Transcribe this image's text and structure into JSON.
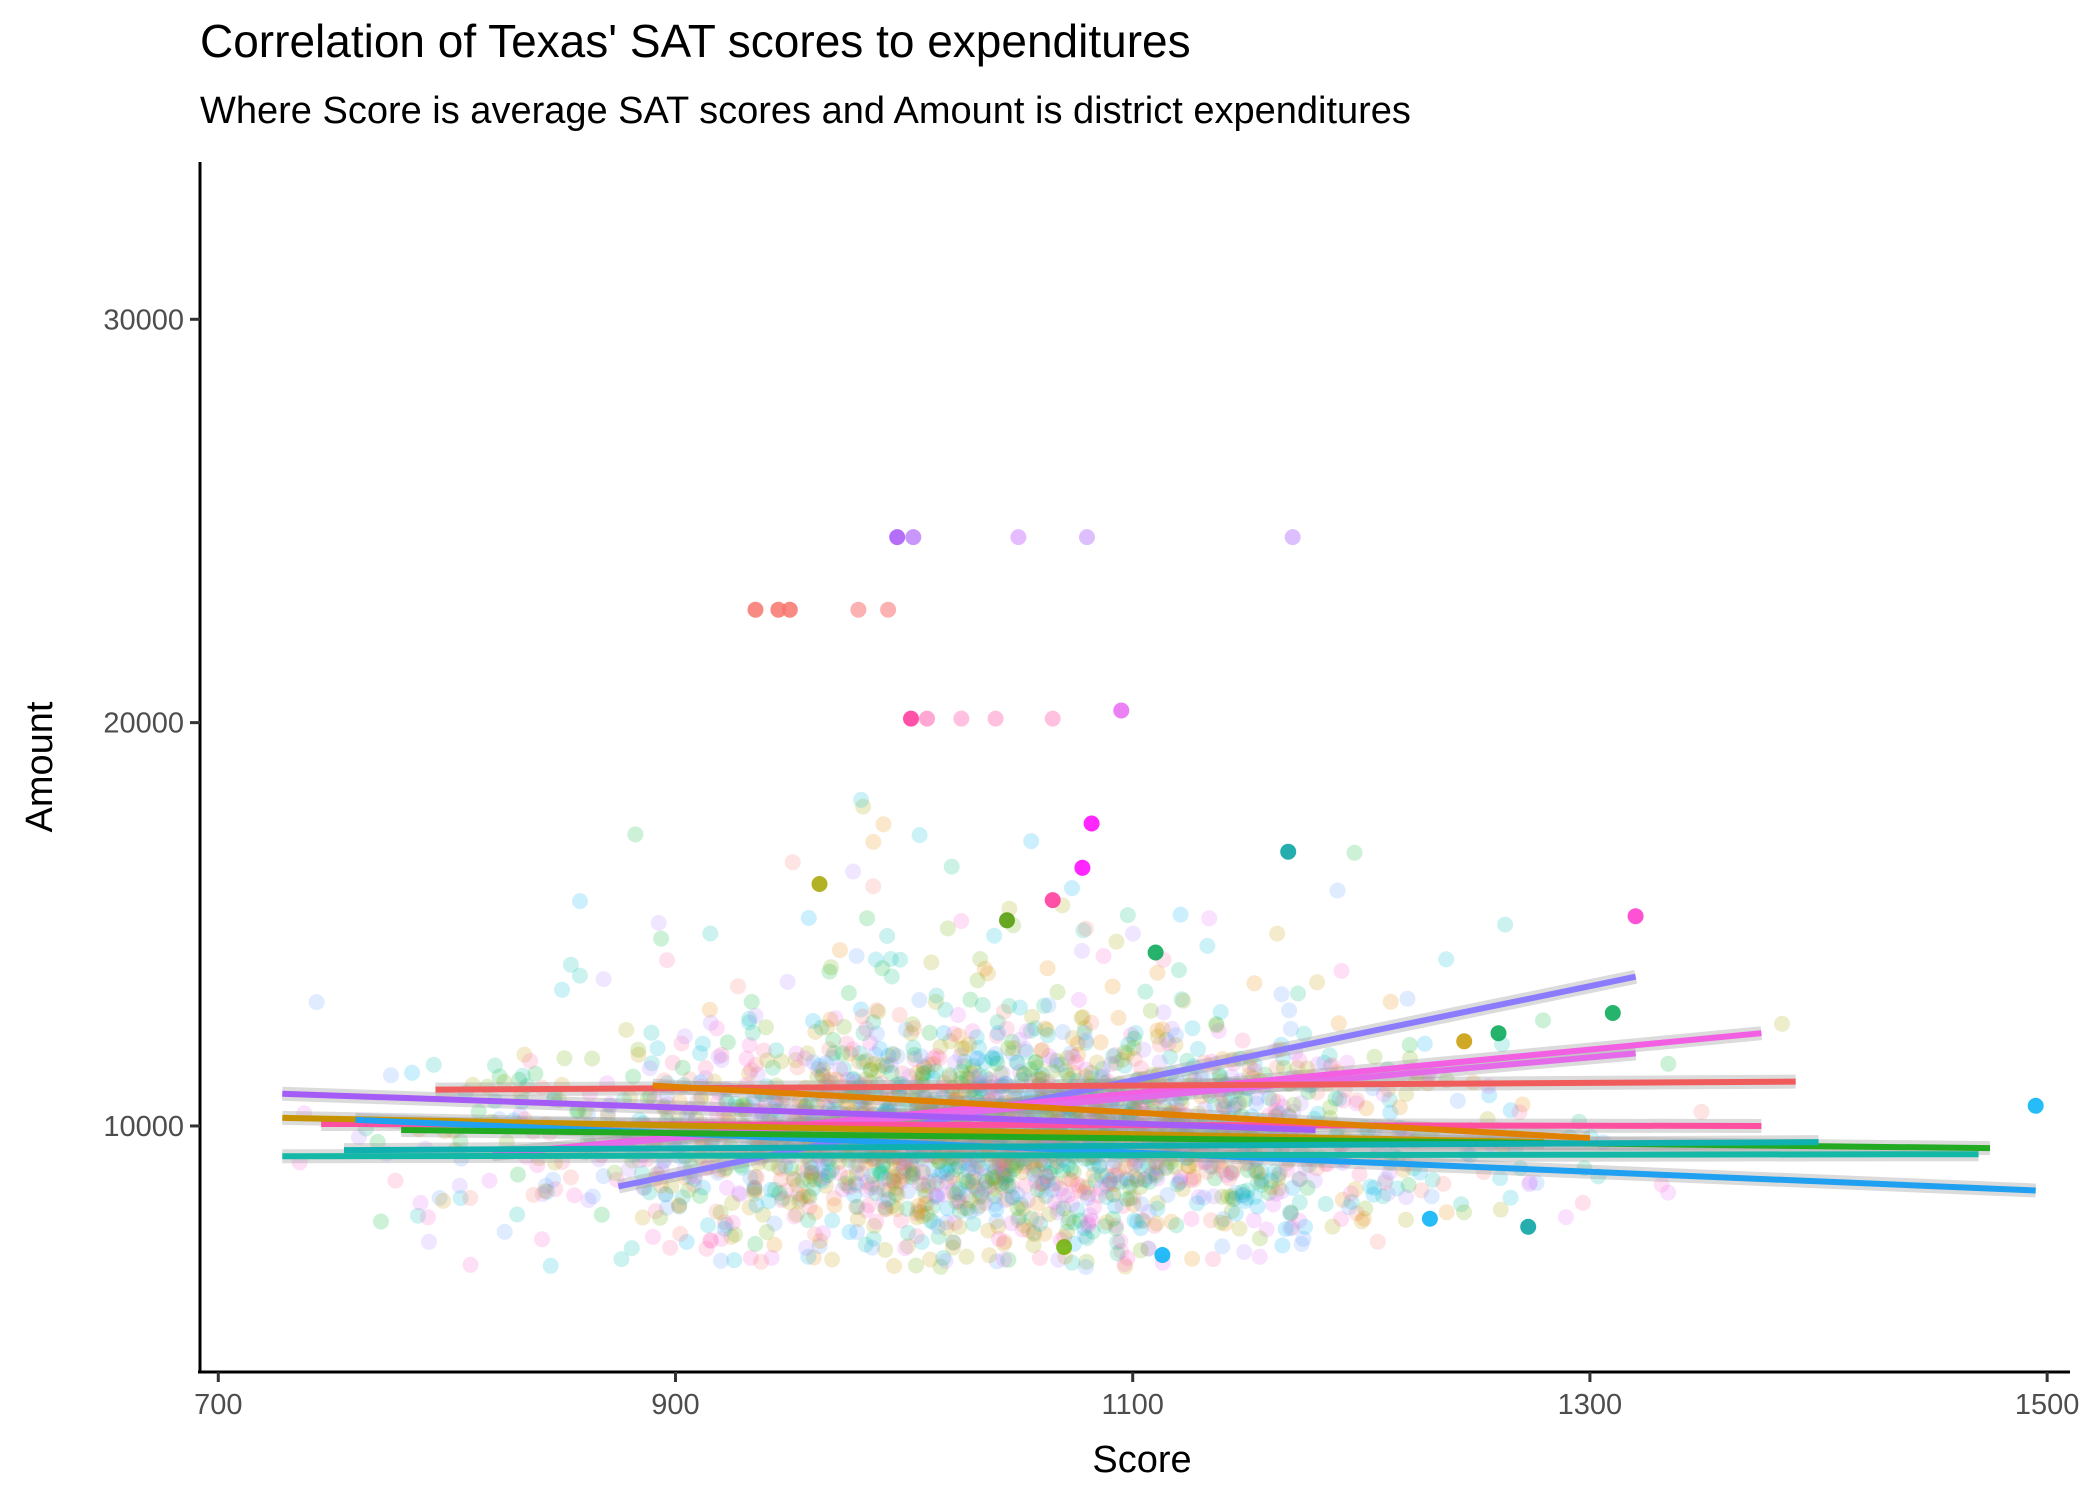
{
  "chart_data": {
    "type": "scatter",
    "title": "Correlation of Texas' SAT scores to expenditures",
    "subtitle": "Where Score is average SAT scores and Amount is district expenditures",
    "xlabel": "Score",
    "ylabel": "Amount",
    "xlim": [
      692,
      1510
    ],
    "ylim": [
      3900,
      33900
    ],
    "x_ticks": [
      700,
      900,
      1100,
      1300,
      1500
    ],
    "x_tick_labels": [
      "700",
      "900",
      "1100",
      "1300",
      "1500"
    ],
    "y_ticks": [
      10000,
      20000,
      30000
    ],
    "y_tick_labels": [
      "10000",
      "20000",
      "30000"
    ],
    "grid": false,
    "legend": "none",
    "point_opacity": 0.2,
    "palette": [
      "#F8766D",
      "#E58700",
      "#C99800",
      "#A3A500",
      "#6BB100",
      "#00BA38",
      "#00BF7D",
      "#00C0AF",
      "#00BCD8",
      "#00B0F6",
      "#619CFF",
      "#B983FF",
      "#E76BF3",
      "#FD61D1",
      "#FF67A4"
    ],
    "highlight_points": [
      {
        "x": 997,
        "y": 24600,
        "color": "#A855F7"
      },
      {
        "x": 1004,
        "y": 24600,
        "color": "#C084FC"
      },
      {
        "x": 1050,
        "y": 24600,
        "color": "#E0B0FF"
      },
      {
        "x": 1080,
        "y": 24600,
        "color": "#D8B4FE"
      },
      {
        "x": 1170,
        "y": 24600,
        "color": "#D8B4FE"
      },
      {
        "x": 935,
        "y": 22800,
        "color": "#F8766D"
      },
      {
        "x": 945,
        "y": 22800,
        "color": "#F8766D"
      },
      {
        "x": 950,
        "y": 22800,
        "color": "#F8766D"
      },
      {
        "x": 980,
        "y": 22800,
        "color": "#FCA5A5"
      },
      {
        "x": 993,
        "y": 22800,
        "color": "#FCA5A5"
      },
      {
        "x": 1003,
        "y": 20100,
        "color": "#FF3399"
      },
      {
        "x": 1010,
        "y": 20100,
        "color": "#FF99CC"
      },
      {
        "x": 1025,
        "y": 20100,
        "color": "#FFB6D9"
      },
      {
        "x": 1040,
        "y": 20100,
        "color": "#FFB6D9"
      },
      {
        "x": 1065,
        "y": 20100,
        "color": "#FFB6D9"
      },
      {
        "x": 1095,
        "y": 20300,
        "color": "#E76BF3"
      },
      {
        "x": 1320,
        "y": 15200,
        "color": "#FF33CC"
      },
      {
        "x": 1082,
        "y": 17500,
        "color": "#FF00FF"
      },
      {
        "x": 1078,
        "y": 16400,
        "color": "#FF00FF"
      },
      {
        "x": 1168,
        "y": 16800,
        "color": "#00A0A0"
      },
      {
        "x": 1310,
        "y": 12800,
        "color": "#00A651"
      },
      {
        "x": 1495,
        "y": 10500,
        "color": "#00B0F6"
      },
      {
        "x": 1113,
        "y": 6800,
        "color": "#00B0F6"
      },
      {
        "x": 1070,
        "y": 7000,
        "color": "#6BB100"
      },
      {
        "x": 1273,
        "y": 7500,
        "color": "#00A0A0"
      },
      {
        "x": 1230,
        "y": 7700,
        "color": "#00B0F6"
      },
      {
        "x": 1260,
        "y": 12300,
        "color": "#00A651"
      },
      {
        "x": 1245,
        "y": 12100,
        "color": "#C99800"
      },
      {
        "x": 963,
        "y": 16000,
        "color": "#A3A500"
      },
      {
        "x": 1065,
        "y": 15600,
        "color": "#FF3399"
      },
      {
        "x": 1110,
        "y": 14300,
        "color": "#00A651"
      },
      {
        "x": 1045,
        "y": 15100,
        "color": "#4D9900"
      }
    ],
    "cluster": {
      "x_center": 1040,
      "x_sd": 95,
      "y_center": 9700,
      "y_sd": 1300,
      "count": 2400
    },
    "trend_lines": [
      {
        "color": "#8B7BFF",
        "x": [
          875,
          1320
        ],
        "y": [
          8500,
          13700
        ]
      },
      {
        "color": "#F35FE3",
        "x": [
          820,
          1375
        ],
        "y": [
          9300,
          12300
        ]
      },
      {
        "color": "#E46AEA",
        "x": [
          860,
          1320
        ],
        "y": [
          9500,
          11800
        ]
      },
      {
        "color": "#F05C5C",
        "x": [
          795,
          1390
        ],
        "y": [
          10900,
          11100
        ]
      },
      {
        "color": "#FF4FA0",
        "x": [
          745,
          1375
        ],
        "y": [
          10050,
          10000
        ]
      },
      {
        "color": "#C69200",
        "x": [
          728,
          1280
        ],
        "y": [
          10200,
          9600
        ]
      },
      {
        "color": "#1FA0F0",
        "x": [
          760,
          1495
        ],
        "y": [
          10150,
          8400
        ]
      },
      {
        "color": "#22AA22",
        "x": [
          780,
          1475
        ],
        "y": [
          9900,
          9450
        ]
      },
      {
        "color": "#14B8A6",
        "x": [
          728,
          1470
        ],
        "y": [
          9250,
          9300
        ]
      },
      {
        "color": "#10B0B0",
        "x": [
          755,
          1400
        ],
        "y": [
          9400,
          9600
        ]
      },
      {
        "color": "#A55CF6",
        "x": [
          728,
          1180
        ],
        "y": [
          10800,
          9900
        ]
      },
      {
        "color": "#E08000",
        "x": [
          890,
          1300
        ],
        "y": [
          11000,
          9700
        ]
      }
    ]
  }
}
